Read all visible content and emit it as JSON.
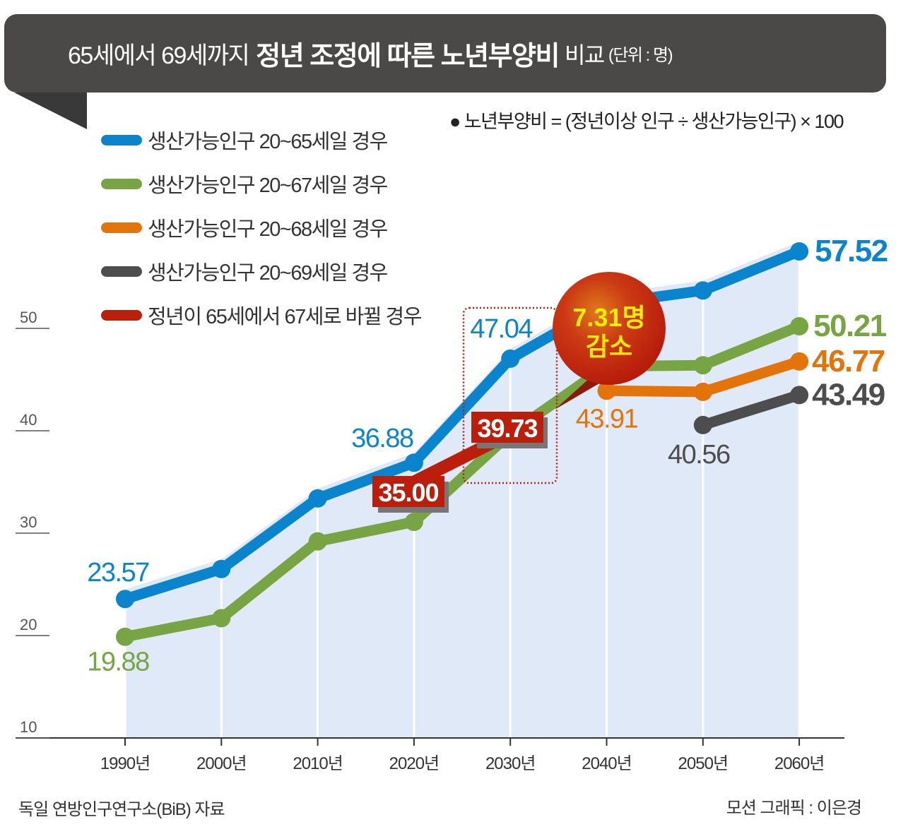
{
  "title": {
    "part1": "65세에서 69세까지",
    "part2": "정년 조정에 따른 노년부양비",
    "part3": "비교",
    "unit": "(단위 : 명)"
  },
  "formula": "● 노년부양비 = (정년이상 인구 ÷ 생산가능인구) × 100",
  "source": "독일 연방인구연구소(BiB) 자료",
  "credit": "모션 그래픽 : 이은경",
  "callout": {
    "line1": "7.31명",
    "line2": "감소"
  },
  "chart_data": {
    "type": "line",
    "title": "65세에서 69세까지 정년 조정에 따른 노년부양비 비교",
    "unit": "(단위 : 명)",
    "categories": [
      "1990년",
      "2000년",
      "2010년",
      "2020년",
      "2030년",
      "2040년",
      "2050년",
      "2060년"
    ],
    "x": [
      1990,
      2000,
      2010,
      2020,
      2030,
      2040,
      2050,
      2060
    ],
    "ylim": [
      10,
      60
    ],
    "yticks": [
      10,
      20,
      30,
      40,
      50
    ],
    "grid": "vertical",
    "legend_position": "top-left",
    "series": [
      {
        "name": "생산가능인구 20~65세일 경우",
        "color": "#0a84cc",
        "values": [
          23.57,
          26.5,
          33.4,
          36.88,
          47.04,
          52.4,
          53.7,
          57.52
        ],
        "labels": {
          "0": "23.57",
          "3": "36.88",
          "4": "47.04",
          "7": "57.52"
        }
      },
      {
        "name": "생산가능인구 20~67세일 경우",
        "color": "#78a543",
        "values": [
          19.88,
          21.7,
          29.2,
          31.1,
          39.73,
          46.3,
          46.4,
          50.21
        ],
        "labels": {
          "0": "19.88",
          "7": "50.21"
        }
      },
      {
        "name": "생산가능인구 20~68세일 경우",
        "color": "#e3740a",
        "values": [
          null,
          null,
          null,
          null,
          null,
          43.91,
          43.8,
          46.77
        ],
        "labels": {
          "5": "43.91",
          "7": "46.77"
        }
      },
      {
        "name": "생산가능인구 20~69세일 경우",
        "color": "#4d4d4d",
        "values": [
          null,
          null,
          null,
          null,
          null,
          null,
          40.56,
          43.49
        ],
        "labels": {
          "6": "40.56",
          "7": "43.49"
        }
      },
      {
        "name": "정년이 65세에서 67세로 바뀔 경우",
        "color": "#bb1e0b",
        "values": [
          null,
          null,
          null,
          35.0,
          39.73,
          null,
          null,
          null
        ],
        "labels": {
          "3": "35.00",
          "4": "39.73"
        }
      }
    ],
    "annotation": "7.31명 감소"
  }
}
